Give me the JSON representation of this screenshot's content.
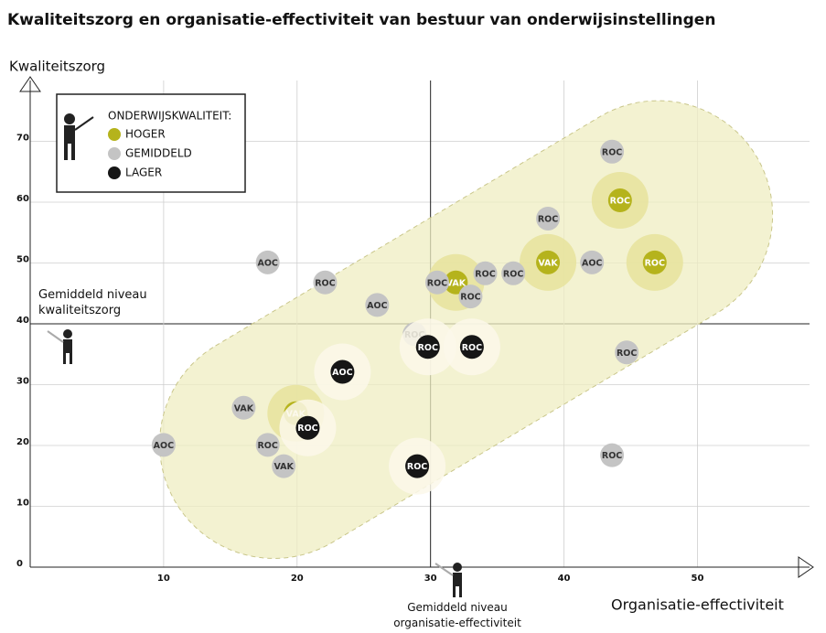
{
  "chart_data": {
    "type": "scatter",
    "title": "Kwaliteitszorg en organisatie-effectiviteit van bestuur van onderwijsinstellingen",
    "x_label": "Organisatie-effectiviteit",
    "y_label": "Kwaliteitszorg",
    "legend_title": "ONDERWIJSKWALITEIT:",
    "legend": "top-left",
    "grid": true,
    "xlim": [
      0,
      58.4
    ],
    "ylim": [
      0,
      80
    ],
    "xticks": [
      10,
      20,
      30,
      40,
      50
    ],
    "yticks": [
      0,
      10,
      20,
      30,
      40,
      50,
      60,
      70
    ],
    "annotations": [
      {
        "text": "Gemiddeld niveau kwaliteitszorg",
        "y": 40
      },
      {
        "text": "Gemiddeld niveau organisatie-effectiviteit",
        "x": 30
      }
    ],
    "series": [
      {
        "name": "HOGER",
        "color": "#b5b31c",
        "halo": "#e6e39c",
        "x": [
          44.2,
          38.8,
          46.8,
          31.9,
          19.9
        ],
        "values": [
          60.3,
          50.1,
          50.1,
          46.8,
          25.3
        ],
        "labels": [
          "ROC",
          "VAK",
          "ROC",
          "VAK",
          "VAK"
        ]
      },
      {
        "name": "GEMIDDELD",
        "color": "#c4c4c4",
        "x": [
          43.6,
          38.8,
          17.8,
          22.1,
          26.0,
          30.5,
          34.1,
          33.0,
          36.2,
          42.1,
          44.7,
          28.8,
          16.0,
          10.0,
          17.8,
          19.0,
          43.6
        ],
        "values": [
          68.3,
          57.3,
          50.1,
          46.8,
          43.1,
          46.8,
          48.3,
          44.5,
          48.3,
          50.1,
          35.3,
          38.3,
          26.2,
          20.1,
          20.1,
          16.6,
          18.4
        ],
        "labels": [
          "ROC",
          "ROC",
          "AOC",
          "ROC",
          "AOC",
          "ROC",
          "ROC",
          "ROC",
          "ROC",
          "AOC",
          "ROC",
          "ROC",
          "VAK",
          "AOC",
          "ROC",
          "VAK",
          "ROC"
        ]
      },
      {
        "name": "LAGER",
        "color": "#161616",
        "halo": "#fbf8ea",
        "x": [
          29.8,
          33.1,
          23.4,
          20.8,
          29.0
        ],
        "values": [
          36.2,
          36.2,
          32.1,
          22.9,
          16.6
        ],
        "labels": [
          "ROC",
          "ROC",
          "AOC",
          "ROC",
          "ROC"
        ]
      }
    ]
  }
}
